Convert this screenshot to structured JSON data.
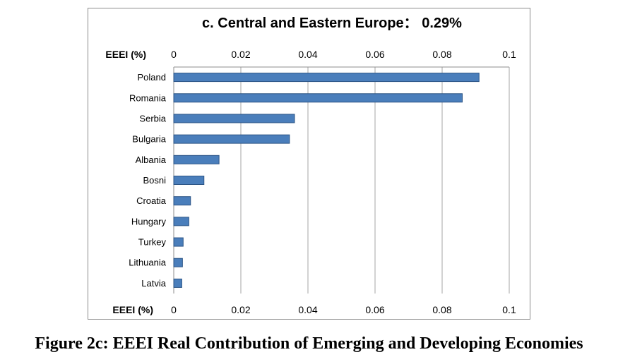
{
  "figure": {
    "caption": "Figure 2c: EEEI Real Contribution of Emerging and Developing Economies"
  },
  "chart_data": {
    "type": "bar",
    "orientation": "horizontal",
    "title": "c. Central and Eastern Europe： 0.29%",
    "xlabel": "EEEI (%)",
    "ylabel": "",
    "categories": [
      "Poland",
      "Romania",
      "Serbia",
      "Bulgaria",
      "Albania",
      "Bosni",
      "Croatia",
      "Hungary",
      "Turkey",
      "Lithuania",
      "Latvia"
    ],
    "values": [
      0.091,
      0.086,
      0.036,
      0.0345,
      0.0135,
      0.009,
      0.005,
      0.0045,
      0.0028,
      0.0026,
      0.0024
    ],
    "xlim": [
      0,
      0.1
    ],
    "xticks": [
      0,
      0.02,
      0.04,
      0.06,
      0.08,
      0.1
    ],
    "xtick_labels": [
      "0",
      "0.02",
      "0.04",
      "0.06",
      "0.08",
      "0.1"
    ],
    "axis_positions": [
      "top",
      "bottom"
    ],
    "grid": true,
    "legend": "none",
    "colors": {
      "bar_fill": "#4a7ebb",
      "bar_stroke": "#2c5586",
      "grid": "#a6a6a6",
      "axis": "#8c8c8c"
    }
  }
}
